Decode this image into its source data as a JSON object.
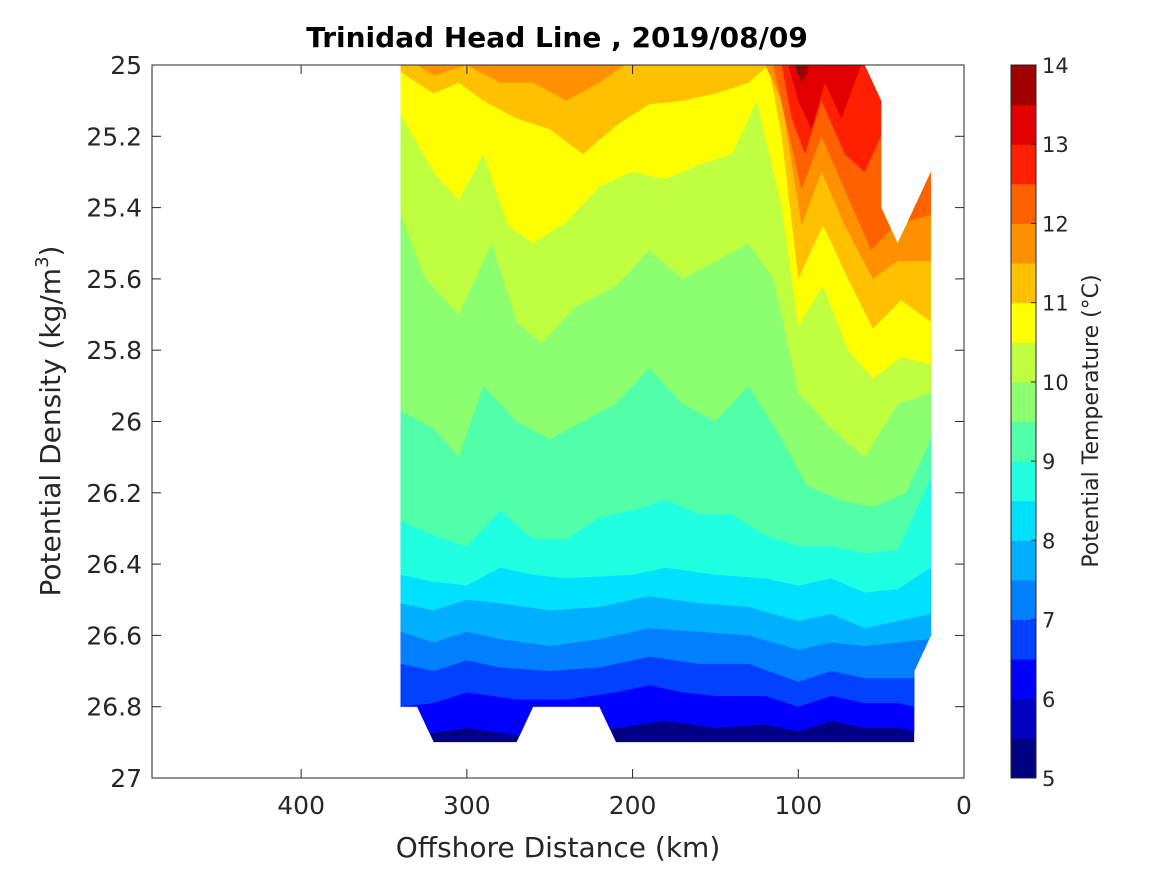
{
  "chart_data": {
    "type": "contour",
    "title": "Trinidad Head Line , 2019/08/09",
    "xlabel": "Offshore Distance (km)",
    "ylabel_main": "Potential Density (kg/m",
    "ylabel_sup": "3",
    "ylabel_close": ")",
    "xlim": [
      490,
      0
    ],
    "ylim": [
      25,
      27
    ],
    "x_ticks": [
      400,
      300,
      200,
      100,
      0
    ],
    "y_ticks": [
      25,
      25.2,
      25.4,
      25.6,
      25.8,
      26,
      26.2,
      26.4,
      26.6,
      26.8,
      27
    ],
    "y_tick_labels": [
      "25",
      "25.2",
      "25.4",
      "25.6",
      "25.8",
      "26",
      "26.2",
      "26.4",
      "26.6",
      "26.8",
      "27"
    ],
    "colorbar": {
      "label": "Potential Temperature (°C)",
      "range": [
        5,
        14
      ],
      "ticks": [
        5,
        6,
        7,
        8,
        9,
        10,
        11,
        12,
        13,
        14
      ],
      "tick_labels": [
        "5",
        "6",
        "7",
        "8",
        "9",
        "10",
        "11",
        "12",
        "13",
        "14"
      ],
      "level_step": 0.5,
      "colors": [
        "#000080",
        "#0000c0",
        "#0000ff",
        "#0040ff",
        "#0080ff",
        "#00b0ff",
        "#00e0ff",
        "#20ffe0",
        "#50ffa8",
        "#8cff70",
        "#c0ff40",
        "#ffff00",
        "#ffc000",
        "#ff9000",
        "#ff6000",
        "#ff2000",
        "#e00000",
        "#a00000"
      ]
    },
    "data_x": [
      340,
      320,
      300,
      280,
      260,
      240,
      220,
      200,
      180,
      160,
      140,
      120,
      100,
      80,
      60,
      40,
      20
    ],
    "bottom_boundary": [
      [
        340,
        26.8
      ],
      [
        330,
        26.8
      ],
      [
        320,
        26.9
      ],
      [
        270,
        26.9
      ],
      [
        260,
        26.8
      ],
      [
        220,
        26.8
      ],
      [
        210,
        26.9
      ],
      [
        30,
        26.9
      ],
      [
        30,
        26.7
      ],
      [
        20,
        26.6
      ]
    ],
    "top_boundary": [
      [
        20,
        25.3
      ],
      [
        40,
        25.5
      ],
      [
        50,
        25.4
      ],
      [
        50,
        25.1
      ],
      [
        60,
        25.0
      ],
      [
        340,
        25.0
      ]
    ],
    "isotherms": [
      {
        "level": 6.0,
        "points": [
          [
            330,
            26.88
          ],
          [
            300,
            26.86
          ],
          [
            270,
            26.88
          ],
          [
            240,
            26.88
          ],
          [
            210,
            26.86
          ],
          [
            180,
            26.84
          ],
          [
            150,
            26.86
          ],
          [
            120,
            26.85
          ],
          [
            100,
            26.87
          ],
          [
            80,
            26.84
          ],
          [
            60,
            26.86
          ],
          [
            40,
            26.86
          ],
          [
            30,
            26.87
          ]
        ]
      },
      {
        "level": 6.5,
        "points": [
          [
            340,
            26.8
          ],
          [
            320,
            26.79
          ],
          [
            300,
            26.76
          ],
          [
            270,
            26.78
          ],
          [
            240,
            26.78
          ],
          [
            210,
            26.76
          ],
          [
            190,
            26.74
          ],
          [
            170,
            26.76
          ],
          [
            150,
            26.77
          ],
          [
            120,
            26.77
          ],
          [
            100,
            26.8
          ],
          [
            80,
            26.77
          ],
          [
            60,
            26.79
          ],
          [
            40,
            26.79
          ],
          [
            30,
            26.8
          ]
        ]
      },
      {
        "level": 7.0,
        "points": [
          [
            340,
            26.68
          ],
          [
            320,
            26.7
          ],
          [
            300,
            26.67
          ],
          [
            280,
            26.69
          ],
          [
            250,
            26.7
          ],
          [
            220,
            26.69
          ],
          [
            190,
            26.66
          ],
          [
            160,
            26.68
          ],
          [
            130,
            26.68
          ],
          [
            100,
            26.73
          ],
          [
            80,
            26.7
          ],
          [
            60,
            26.72
          ],
          [
            30,
            26.72
          ],
          [
            24,
            26.66
          ]
        ]
      },
      {
        "level": 7.5,
        "points": [
          [
            340,
            26.59
          ],
          [
            320,
            26.62
          ],
          [
            300,
            26.59
          ],
          [
            280,
            26.61
          ],
          [
            250,
            26.63
          ],
          [
            220,
            26.61
          ],
          [
            190,
            26.58
          ],
          [
            160,
            26.59
          ],
          [
            130,
            26.6
          ],
          [
            100,
            26.64
          ],
          [
            80,
            26.62
          ],
          [
            60,
            26.63
          ],
          [
            40,
            26.62
          ],
          [
            20,
            26.61
          ]
        ]
      },
      {
        "level": 8.0,
        "points": [
          [
            340,
            26.51
          ],
          [
            320,
            26.53
          ],
          [
            300,
            26.5
          ],
          [
            280,
            26.51
          ],
          [
            250,
            26.53
          ],
          [
            220,
            26.52
          ],
          [
            190,
            26.49
          ],
          [
            160,
            26.51
          ],
          [
            130,
            26.52
          ],
          [
            100,
            26.56
          ],
          [
            80,
            26.54
          ],
          [
            60,
            26.58
          ],
          [
            40,
            26.56
          ],
          [
            20,
            26.54
          ]
        ]
      },
      {
        "level": 8.5,
        "points": [
          [
            340,
            26.43
          ],
          [
            320,
            26.45
          ],
          [
            300,
            26.46
          ],
          [
            280,
            26.41
          ],
          [
            260,
            26.43
          ],
          [
            240,
            26.44
          ],
          [
            200,
            26.43
          ],
          [
            180,
            26.41
          ],
          [
            150,
            26.43
          ],
          [
            120,
            26.44
          ],
          [
            100,
            26.46
          ],
          [
            80,
            26.44
          ],
          [
            60,
            26.48
          ],
          [
            40,
            26.47
          ],
          [
            20,
            26.41
          ]
        ]
      },
      {
        "level": 9.0,
        "points": [
          [
            340,
            26.28
          ],
          [
            320,
            26.32
          ],
          [
            300,
            26.35
          ],
          [
            280,
            26.25
          ],
          [
            260,
            26.33
          ],
          [
            240,
            26.33
          ],
          [
            220,
            26.27
          ],
          [
            200,
            26.25
          ],
          [
            180,
            26.22
          ],
          [
            160,
            26.26
          ],
          [
            140,
            26.26
          ],
          [
            120,
            26.32
          ],
          [
            100,
            26.35
          ],
          [
            80,
            26.35
          ],
          [
            60,
            26.37
          ],
          [
            40,
            26.36
          ],
          [
            20,
            26.16
          ]
        ]
      },
      {
        "level": 9.5,
        "points": [
          [
            340,
            25.97
          ],
          [
            320,
            26.02
          ],
          [
            305,
            26.1
          ],
          [
            290,
            25.9
          ],
          [
            270,
            26.0
          ],
          [
            250,
            26.05
          ],
          [
            230,
            26.0
          ],
          [
            210,
            25.95
          ],
          [
            190,
            25.85
          ],
          [
            170,
            25.95
          ],
          [
            150,
            26.0
          ],
          [
            130,
            25.9
          ],
          [
            110,
            26.05
          ],
          [
            95,
            26.18
          ],
          [
            75,
            26.22
          ],
          [
            55,
            26.24
          ],
          [
            35,
            26.2
          ],
          [
            20,
            26.05
          ]
        ]
      },
      {
        "level": 10.0,
        "points": [
          [
            340,
            25.42
          ],
          [
            325,
            25.6
          ],
          [
            305,
            25.7
          ],
          [
            285,
            25.5
          ],
          [
            270,
            25.72
          ],
          [
            255,
            25.78
          ],
          [
            235,
            25.68
          ],
          [
            210,
            25.62
          ],
          [
            190,
            25.52
          ],
          [
            170,
            25.6
          ],
          [
            150,
            25.55
          ],
          [
            130,
            25.5
          ],
          [
            115,
            25.6
          ],
          [
            100,
            25.92
          ],
          [
            80,
            26.02
          ],
          [
            60,
            26.1
          ],
          [
            40,
            25.95
          ],
          [
            20,
            25.92
          ]
        ]
      },
      {
        "level": 10.5,
        "points": [
          [
            340,
            25.14
          ],
          [
            320,
            25.3
          ],
          [
            305,
            25.38
          ],
          [
            290,
            25.25
          ],
          [
            275,
            25.45
          ],
          [
            260,
            25.5
          ],
          [
            240,
            25.44
          ],
          [
            220,
            25.34
          ],
          [
            200,
            25.3
          ],
          [
            180,
            25.32
          ],
          [
            160,
            25.28
          ],
          [
            140,
            25.25
          ],
          [
            125,
            25.1
          ],
          [
            110,
            25.4
          ],
          [
            100,
            25.73
          ],
          [
            85,
            25.62
          ],
          [
            70,
            25.8
          ],
          [
            55,
            25.88
          ],
          [
            38,
            25.82
          ],
          [
            20,
            25.84
          ]
        ]
      },
      {
        "level": 11.0,
        "points": [
          [
            340,
            25.02
          ],
          [
            320,
            25.08
          ],
          [
            305,
            25.05
          ],
          [
            290,
            25.1
          ],
          [
            270,
            25.15
          ],
          [
            250,
            25.18
          ],
          [
            230,
            25.25
          ],
          [
            210,
            25.17
          ],
          [
            190,
            25.11
          ],
          [
            170,
            25.1
          ],
          [
            150,
            25.08
          ],
          [
            130,
            25.05
          ],
          [
            118,
            25.0
          ],
          [
            110,
            25.2
          ],
          [
            100,
            25.6
          ],
          [
            85,
            25.45
          ],
          [
            70,
            25.6
          ],
          [
            55,
            25.74
          ],
          [
            38,
            25.66
          ],
          [
            20,
            25.72
          ]
        ]
      },
      {
        "level": 11.5,
        "points": [
          [
            330,
            25.0
          ],
          [
            320,
            25.03
          ],
          [
            300,
            25.0
          ],
          [
            280,
            25.05
          ],
          [
            260,
            25.05
          ],
          [
            240,
            25.1
          ],
          [
            220,
            25.05
          ],
          [
            205,
            25.0
          ],
          [
            120,
            25.0
          ],
          [
            110,
            25.1
          ],
          [
            98,
            25.45
          ],
          [
            86,
            25.3
          ],
          [
            72,
            25.45
          ],
          [
            55,
            25.6
          ],
          [
            40,
            25.55
          ],
          [
            20,
            25.55
          ]
        ]
      },
      {
        "level": 12.0,
        "points": [
          [
            115,
            25.0
          ],
          [
            108,
            25.15
          ],
          [
            98,
            25.35
          ],
          [
            86,
            25.2
          ],
          [
            72,
            25.35
          ],
          [
            56,
            25.52
          ],
          [
            42,
            25.45
          ],
          [
            20,
            25.42
          ]
        ]
      },
      {
        "level": 12.5,
        "points": [
          [
            110,
            25.0
          ],
          [
            104,
            25.15
          ],
          [
            96,
            25.25
          ],
          [
            86,
            25.1
          ],
          [
            72,
            25.25
          ],
          [
            60,
            25.3
          ],
          [
            50,
            25.2
          ],
          [
            50,
            25.1
          ]
        ]
      },
      {
        "level": 13.0,
        "points": [
          [
            106,
            25.0
          ],
          [
            100,
            25.1
          ],
          [
            92,
            25.18
          ],
          [
            84,
            25.05
          ],
          [
            74,
            25.15
          ],
          [
            66,
            25.05
          ],
          [
            62,
            25.0
          ]
        ]
      },
      {
        "level": 13.5,
        "points": [
          [
            102,
            25.0
          ],
          [
            98,
            25.05
          ],
          [
            94,
            25.02
          ]
        ]
      }
    ]
  }
}
